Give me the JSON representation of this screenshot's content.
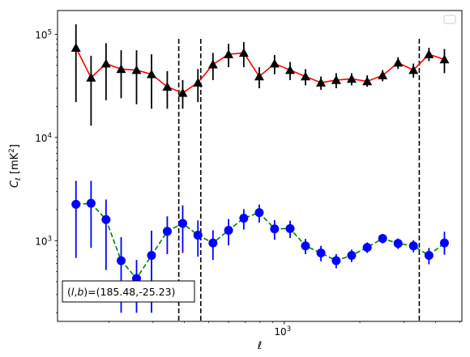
{
  "chart_data": {
    "type": "line",
    "xlabel": "ℓ",
    "ylabel": "C_ℓ  [mK²]",
    "xscale": "log",
    "yscale": "log",
    "xlim": [
      125,
      5100
    ],
    "ylim": [
      165,
      170000
    ],
    "x_major_ticks": [
      {
        "value": 1000,
        "base": "10",
        "exp": "3"
      }
    ],
    "y_major_ticks": [
      {
        "value": 1000,
        "base": "10",
        "exp": "3"
      },
      {
        "value": 10000,
        "base": "10",
        "exp": "4"
      },
      {
        "value": 100000,
        "base": "10",
        "exp": "5"
      }
    ],
    "legend_placement": "top-right",
    "legend_entries": [],
    "annotation": "(l, b)=(185.48,-25.23)",
    "vlines": [
      380,
      465,
      3450
    ],
    "series": [
      {
        "line_color": "#ff0000",
        "marker_color": "#000000",
        "marker": "triangle",
        "linestyle": "solid",
        "points": [
          {
            "x": 148,
            "y": 74000,
            "lo": 22000,
            "hi": 125000
          },
          {
            "x": 170,
            "y": 38000,
            "lo": 13000,
            "hi": 62000
          },
          {
            "x": 195,
            "y": 52000,
            "lo": 23000,
            "hi": 82000
          },
          {
            "x": 224,
            "y": 46000,
            "lo": 24000,
            "hi": 70000
          },
          {
            "x": 258,
            "y": 45000,
            "lo": 21000,
            "hi": 70000
          },
          {
            "x": 296,
            "y": 41000,
            "lo": 19000,
            "hi": 64000
          },
          {
            "x": 342,
            "y": 31000,
            "lo": 19000,
            "hi": 44000
          },
          {
            "x": 394,
            "y": 27000,
            "lo": 19000,
            "hi": 36000
          },
          {
            "x": 453,
            "y": 34000,
            "lo": 22000,
            "hi": 46000
          },
          {
            "x": 520,
            "y": 51000,
            "lo": 36000,
            "hi": 66000
          },
          {
            "x": 600,
            "y": 64000,
            "lo": 48000,
            "hi": 81000
          },
          {
            "x": 690,
            "y": 66000,
            "lo": 48000,
            "hi": 84000
          },
          {
            "x": 795,
            "y": 39000,
            "lo": 30000,
            "hi": 48000
          },
          {
            "x": 915,
            "y": 52000,
            "lo": 41000,
            "hi": 63000
          },
          {
            "x": 1055,
            "y": 45000,
            "lo": 36000,
            "hi": 54000
          },
          {
            "x": 1215,
            "y": 39000,
            "lo": 32000,
            "hi": 46000
          },
          {
            "x": 1400,
            "y": 34000,
            "lo": 29000,
            "hi": 39000
          },
          {
            "x": 1610,
            "y": 36000,
            "lo": 30000,
            "hi": 42000
          },
          {
            "x": 1855,
            "y": 37000,
            "lo": 32000,
            "hi": 42000
          },
          {
            "x": 2140,
            "y": 35000,
            "lo": 31000,
            "hi": 40000
          },
          {
            "x": 2465,
            "y": 40000,
            "lo": 35000,
            "hi": 45000
          },
          {
            "x": 2840,
            "y": 53000,
            "lo": 46000,
            "hi": 60000
          },
          {
            "x": 3270,
            "y": 45000,
            "lo": 38000,
            "hi": 52000
          },
          {
            "x": 3770,
            "y": 64000,
            "lo": 55000,
            "hi": 74000
          },
          {
            "x": 4345,
            "y": 57000,
            "lo": 42000,
            "hi": 72000
          }
        ]
      },
      {
        "line_color": "#008000",
        "marker_color": "#0000ff",
        "marker": "circle",
        "linestyle": "dashed",
        "points": [
          {
            "x": 148,
            "y": 2250,
            "lo": 680,
            "hi": 3800
          },
          {
            "x": 170,
            "y": 2300,
            "lo": 850,
            "hi": 3800
          },
          {
            "x": 195,
            "y": 1600,
            "lo": 520,
            "hi": 2500
          },
          {
            "x": 224,
            "y": 640,
            "lo": 200,
            "hi": 1080
          },
          {
            "x": 258,
            "y": 430,
            "lo": 200,
            "hi": 650
          },
          {
            "x": 296,
            "y": 720,
            "lo": 200,
            "hi": 1250
          },
          {
            "x": 342,
            "y": 1230,
            "lo": 740,
            "hi": 1720
          },
          {
            "x": 394,
            "y": 1470,
            "lo": 760,
            "hi": 2200
          },
          {
            "x": 453,
            "y": 1130,
            "lo": 700,
            "hi": 1570
          },
          {
            "x": 520,
            "y": 950,
            "lo": 650,
            "hi": 1260
          },
          {
            "x": 600,
            "y": 1260,
            "lo": 900,
            "hi": 1620
          },
          {
            "x": 690,
            "y": 1650,
            "lo": 1280,
            "hi": 2020
          },
          {
            "x": 795,
            "y": 1870,
            "lo": 1500,
            "hi": 2240
          },
          {
            "x": 915,
            "y": 1300,
            "lo": 1020,
            "hi": 1580
          },
          {
            "x": 1055,
            "y": 1310,
            "lo": 1060,
            "hi": 1560
          },
          {
            "x": 1215,
            "y": 890,
            "lo": 740,
            "hi": 1040
          },
          {
            "x": 1400,
            "y": 760,
            "lo": 630,
            "hi": 890
          },
          {
            "x": 1610,
            "y": 640,
            "lo": 540,
            "hi": 740
          },
          {
            "x": 1855,
            "y": 720,
            "lo": 620,
            "hi": 820
          },
          {
            "x": 2140,
            "y": 860,
            "lo": 760,
            "hi": 960
          },
          {
            "x": 2465,
            "y": 1050,
            "lo": 940,
            "hi": 1160
          },
          {
            "x": 2840,
            "y": 940,
            "lo": 830,
            "hi": 1050
          },
          {
            "x": 3270,
            "y": 890,
            "lo": 770,
            "hi": 1010
          },
          {
            "x": 3770,
            "y": 720,
            "lo": 590,
            "hi": 850
          },
          {
            "x": 4345,
            "y": 950,
            "lo": 730,
            "hi": 1220
          }
        ]
      }
    ]
  }
}
